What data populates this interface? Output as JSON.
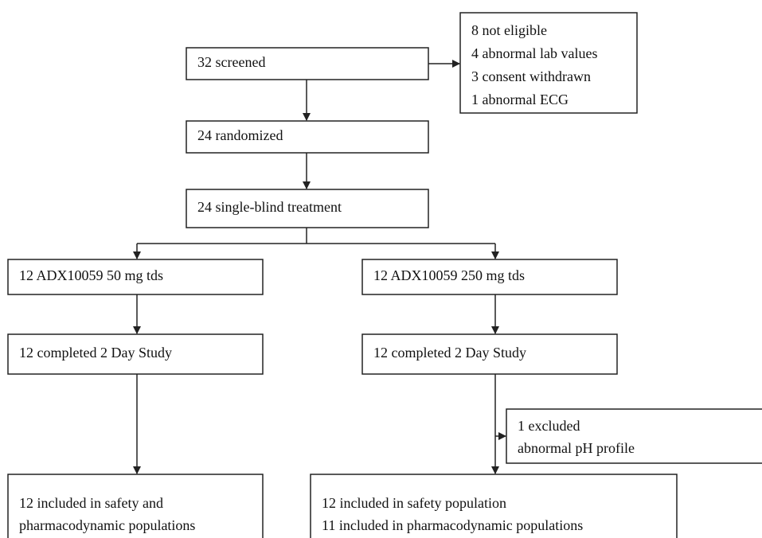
{
  "nodes": [
    {
      "lines": [
        "32 screened"
      ]
    },
    {
      "lines": [
        "8 not eligible",
        "4 abnormal lab values",
        "3 consent withdrawn",
        "1 abnormal ECG"
      ]
    },
    {
      "lines": [
        "24 randomized"
      ]
    },
    {
      "lines": [
        "24 single-blind treatment"
      ]
    },
    {
      "lines": [
        "12 ADX10059 50 mg tds"
      ]
    },
    {
      "lines": [
        "12 ADX10059 250 mg tds"
      ]
    },
    {
      "lines": [
        "12 completed 2 Day Study"
      ]
    },
    {
      "lines": [
        "12 completed 2 Day Study"
      ]
    },
    {
      "lines": [
        "1 excluded",
        "abnormal pH profile"
      ]
    },
    {
      "lines": [
        "12 included in safety and",
        "pharmacodynamic populations"
      ]
    },
    {
      "lines": [
        "12 included in safety population",
        "11 included in pharmacodynamic populations"
      ]
    }
  ]
}
